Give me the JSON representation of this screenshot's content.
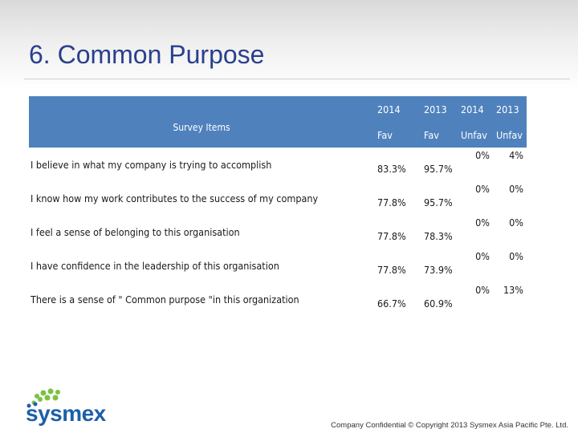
{
  "slide": {
    "title": "6. Common Purpose"
  },
  "table": {
    "items_header": "Survey Items",
    "col_years": [
      "2014",
      "2013",
      "2014",
      "2013"
    ],
    "col_types": [
      "Fav",
      "Fav",
      "Unfav",
      "Unfav"
    ],
    "rows": [
      {
        "item": "I believe in what my company is trying to accomplish",
        "fav2014": "83.3%",
        "fav2013": "95.7%",
        "unfav2014": "0%",
        "unfav2013": "4%"
      },
      {
        "item": "I know how my work contributes to the success of my company",
        "fav2014": "77.8%",
        "fav2013": "95.7%",
        "unfav2014": "0%",
        "unfav2013": "0%"
      },
      {
        "item": "I feel a sense of belonging to this organisation",
        "fav2014": "77.8%",
        "fav2013": "78.3%",
        "unfav2014": "0%",
        "unfav2013": "0%"
      },
      {
        "item": "I have confidence in the leadership of this organisation",
        "fav2014": "77.8%",
        "fav2013": "73.9%",
        "unfav2014": "0%",
        "unfav2013": "0%"
      },
      {
        "item": "There is a sense of \" Common purpose \"in this organization",
        "fav2014": "66.7%",
        "fav2013": "60.9%",
        "unfav2014": "0%",
        "unfav2013": "13%"
      }
    ]
  },
  "logo": {
    "wordmark": "sysmex"
  },
  "footer": {
    "confidential": "Company Confidential © Copyright 2013 Sysmex Asia Pacific Pte. Ltd."
  },
  "colors": {
    "header_blue": "#4f81bd",
    "title_blue": "#2a3f8f",
    "logo_blue": "#1d5fa8",
    "logo_green": "#7cc242"
  }
}
